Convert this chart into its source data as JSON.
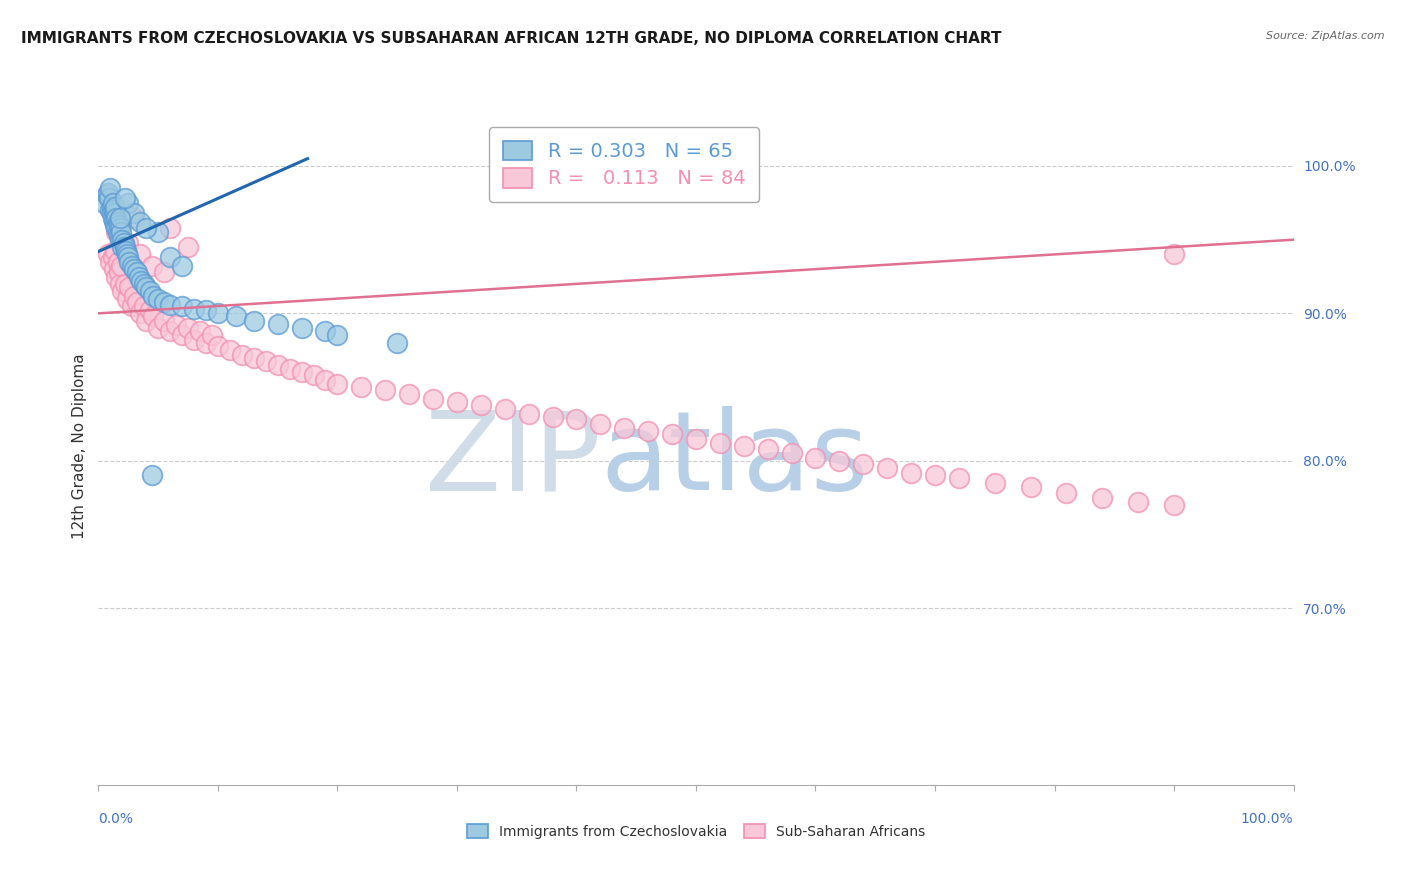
{
  "title": "IMMIGRANTS FROM CZECHOSLOVAKIA VS SUBSAHARAN AFRICAN 12TH GRADE, NO DIPLOMA CORRELATION CHART",
  "source": "Source: ZipAtlas.com",
  "ylabel": "12th Grade, No Diploma",
  "blue_color": "#5b9bd5",
  "blue_fill": "#9ecae1",
  "pink_color": "#f48fb1",
  "pink_fill": "#f8c8d8",
  "blue_line_color": "#2166ac",
  "pink_line_color": "#e07090",
  "watermark_zip": "ZIP",
  "watermark_atlas": "atlas",
  "watermark_zip_color": "#d0dce8",
  "watermark_atlas_color": "#b8cfe8",
  "watermark_fontsize": 80,
  "grid_color": "#cccccc",
  "background_color": "#ffffff",
  "title_fontsize": 11,
  "axis_label_fontsize": 10,
  "tick_fontsize": 10,
  "legend_fontsize": 14,
  "right_tick_color": "#4472c4",
  "bottom_tick_color": "#4472c4",
  "xlim": [
    0.0,
    1.0
  ],
  "ylim": [
    0.58,
    1.04
  ],
  "ytick_positions": [
    0.7,
    0.8,
    0.9,
    1.0
  ],
  "ytick_labels": [
    "70.0%",
    "80.0%",
    "90.0%",
    "100.0%"
  ],
  "blue_scatter_x": [
    0.005,
    0.007,
    0.008,
    0.009,
    0.01,
    0.01,
    0.011,
    0.011,
    0.012,
    0.012,
    0.013,
    0.013,
    0.014,
    0.014,
    0.014,
    0.015,
    0.015,
    0.016,
    0.016,
    0.017,
    0.017,
    0.018,
    0.018,
    0.019,
    0.02,
    0.02,
    0.021,
    0.022,
    0.023,
    0.024,
    0.025,
    0.026,
    0.028,
    0.03,
    0.032,
    0.034,
    0.036,
    0.038,
    0.04,
    0.043,
    0.046,
    0.05,
    0.055,
    0.06,
    0.07,
    0.08,
    0.09,
    0.1,
    0.115,
    0.13,
    0.15,
    0.17,
    0.19,
    0.05,
    0.025,
    0.03,
    0.035,
    0.04,
    0.022,
    0.018,
    0.2,
    0.25,
    0.06,
    0.07,
    0.045
  ],
  "blue_scatter_y": [
    0.975,
    0.98,
    0.982,
    0.978,
    0.97,
    0.985,
    0.972,
    0.968,
    0.975,
    0.965,
    0.97,
    0.963,
    0.968,
    0.972,
    0.96,
    0.965,
    0.958,
    0.962,
    0.955,
    0.96,
    0.953,
    0.958,
    0.95,
    0.955,
    0.95,
    0.945,
    0.948,
    0.945,
    0.942,
    0.94,
    0.938,
    0.935,
    0.932,
    0.93,
    0.928,
    0.925,
    0.922,
    0.92,
    0.918,
    0.915,
    0.912,
    0.91,
    0.908,
    0.906,
    0.905,
    0.903,
    0.902,
    0.9,
    0.898,
    0.895,
    0.893,
    0.89,
    0.888,
    0.955,
    0.975,
    0.968,
    0.962,
    0.958,
    0.978,
    0.965,
    0.885,
    0.88,
    0.938,
    0.932,
    0.79
  ],
  "pink_scatter_x": [
    0.008,
    0.01,
    0.012,
    0.013,
    0.014,
    0.015,
    0.016,
    0.017,
    0.018,
    0.019,
    0.02,
    0.022,
    0.024,
    0.026,
    0.028,
    0.03,
    0.032,
    0.035,
    0.038,
    0.04,
    0.043,
    0.046,
    0.05,
    0.055,
    0.06,
    0.065,
    0.07,
    0.075,
    0.08,
    0.085,
    0.09,
    0.095,
    0.1,
    0.11,
    0.12,
    0.13,
    0.14,
    0.15,
    0.16,
    0.17,
    0.18,
    0.19,
    0.2,
    0.22,
    0.24,
    0.26,
    0.28,
    0.3,
    0.32,
    0.34,
    0.36,
    0.38,
    0.4,
    0.42,
    0.44,
    0.46,
    0.48,
    0.5,
    0.52,
    0.54,
    0.56,
    0.58,
    0.6,
    0.62,
    0.64,
    0.66,
    0.68,
    0.7,
    0.72,
    0.75,
    0.78,
    0.81,
    0.84,
    0.87,
    0.9,
    0.015,
    0.025,
    0.035,
    0.045,
    0.055,
    0.9,
    0.03,
    0.06,
    0.075
  ],
  "pink_scatter_y": [
    0.94,
    0.935,
    0.938,
    0.93,
    0.942,
    0.925,
    0.935,
    0.928,
    0.92,
    0.932,
    0.915,
    0.92,
    0.91,
    0.918,
    0.905,
    0.912,
    0.908,
    0.9,
    0.905,
    0.895,
    0.902,
    0.898,
    0.89,
    0.895,
    0.888,
    0.892,
    0.885,
    0.89,
    0.882,
    0.888,
    0.88,
    0.885,
    0.878,
    0.875,
    0.872,
    0.87,
    0.868,
    0.865,
    0.862,
    0.86,
    0.858,
    0.855,
    0.852,
    0.85,
    0.848,
    0.845,
    0.842,
    0.84,
    0.838,
    0.835,
    0.832,
    0.83,
    0.828,
    0.825,
    0.822,
    0.82,
    0.818,
    0.815,
    0.812,
    0.81,
    0.808,
    0.805,
    0.802,
    0.8,
    0.798,
    0.795,
    0.792,
    0.79,
    0.788,
    0.785,
    0.782,
    0.778,
    0.775,
    0.772,
    0.77,
    0.955,
    0.948,
    0.94,
    0.932,
    0.928,
    0.94,
    0.965,
    0.958,
    0.945
  ],
  "blue_trend_x": [
    0.0,
    0.175
  ],
  "blue_trend_y": [
    0.942,
    1.005
  ],
  "pink_trend_x": [
    0.0,
    1.0
  ],
  "pink_trend_y": [
    0.9,
    0.95
  ]
}
